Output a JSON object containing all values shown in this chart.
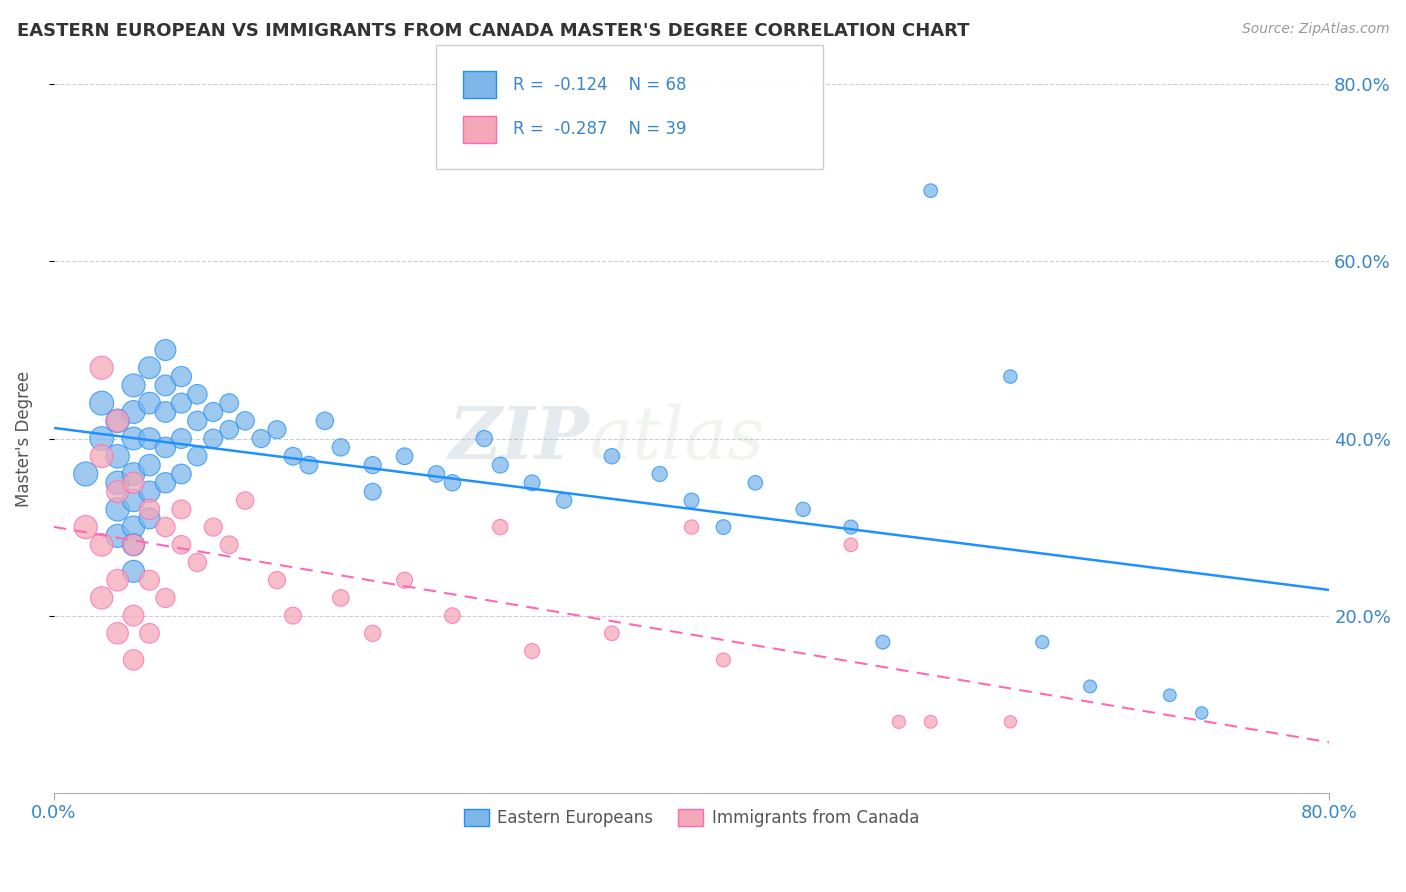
{
  "title": "EASTERN EUROPEAN VS IMMIGRANTS FROM CANADA MASTER'S DEGREE CORRELATION CHART",
  "source_text": "Source: ZipAtlas.com",
  "ylabel": "Master's Degree",
  "xlim": [
    0.0,
    0.8
  ],
  "ylim": [
    0.0,
    0.8
  ],
  "legend_label1": "Eastern Europeans",
  "legend_label2": "Immigrants from Canada",
  "R1": -0.124,
  "N1": 68,
  "R2": -0.287,
  "N2": 39,
  "color_blue": "#7EB6E8",
  "color_pink": "#F4A8B8",
  "line_color_blue": "#1E90FF",
  "line_color_pink": "#FF69B4",
  "watermark_zip": "ZIP",
  "watermark_atlas": "atlas",
  "blue_points": [
    [
      0.02,
      0.36
    ],
    [
      0.03,
      0.44
    ],
    [
      0.03,
      0.4
    ],
    [
      0.04,
      0.42
    ],
    [
      0.04,
      0.38
    ],
    [
      0.04,
      0.35
    ],
    [
      0.04,
      0.32
    ],
    [
      0.04,
      0.29
    ],
    [
      0.05,
      0.46
    ],
    [
      0.05,
      0.43
    ],
    [
      0.05,
      0.4
    ],
    [
      0.05,
      0.36
    ],
    [
      0.05,
      0.33
    ],
    [
      0.05,
      0.3
    ],
    [
      0.05,
      0.28
    ],
    [
      0.05,
      0.25
    ],
    [
      0.06,
      0.48
    ],
    [
      0.06,
      0.44
    ],
    [
      0.06,
      0.4
    ],
    [
      0.06,
      0.37
    ],
    [
      0.06,
      0.34
    ],
    [
      0.06,
      0.31
    ],
    [
      0.07,
      0.5
    ],
    [
      0.07,
      0.46
    ],
    [
      0.07,
      0.43
    ],
    [
      0.07,
      0.39
    ],
    [
      0.07,
      0.35
    ],
    [
      0.08,
      0.47
    ],
    [
      0.08,
      0.44
    ],
    [
      0.08,
      0.4
    ],
    [
      0.08,
      0.36
    ],
    [
      0.09,
      0.45
    ],
    [
      0.09,
      0.42
    ],
    [
      0.09,
      0.38
    ],
    [
      0.1,
      0.43
    ],
    [
      0.1,
      0.4
    ],
    [
      0.11,
      0.44
    ],
    [
      0.11,
      0.41
    ],
    [
      0.12,
      0.42
    ],
    [
      0.13,
      0.4
    ],
    [
      0.14,
      0.41
    ],
    [
      0.15,
      0.38
    ],
    [
      0.16,
      0.37
    ],
    [
      0.17,
      0.42
    ],
    [
      0.18,
      0.39
    ],
    [
      0.2,
      0.37
    ],
    [
      0.2,
      0.34
    ],
    [
      0.22,
      0.38
    ],
    [
      0.24,
      0.36
    ],
    [
      0.25,
      0.35
    ],
    [
      0.27,
      0.4
    ],
    [
      0.28,
      0.37
    ],
    [
      0.3,
      0.35
    ],
    [
      0.32,
      0.33
    ],
    [
      0.35,
      0.38
    ],
    [
      0.38,
      0.36
    ],
    [
      0.4,
      0.33
    ],
    [
      0.42,
      0.3
    ],
    [
      0.44,
      0.35
    ],
    [
      0.47,
      0.32
    ],
    [
      0.5,
      0.3
    ],
    [
      0.52,
      0.17
    ],
    [
      0.55,
      0.68
    ],
    [
      0.6,
      0.47
    ],
    [
      0.62,
      0.17
    ],
    [
      0.65,
      0.12
    ],
    [
      0.7,
      0.11
    ],
    [
      0.72,
      0.09
    ]
  ],
  "pink_points": [
    [
      0.02,
      0.3
    ],
    [
      0.03,
      0.48
    ],
    [
      0.03,
      0.38
    ],
    [
      0.03,
      0.28
    ],
    [
      0.03,
      0.22
    ],
    [
      0.04,
      0.42
    ],
    [
      0.04,
      0.34
    ],
    [
      0.04,
      0.24
    ],
    [
      0.04,
      0.18
    ],
    [
      0.05,
      0.35
    ],
    [
      0.05,
      0.28
    ],
    [
      0.05,
      0.2
    ],
    [
      0.05,
      0.15
    ],
    [
      0.06,
      0.32
    ],
    [
      0.06,
      0.24
    ],
    [
      0.06,
      0.18
    ],
    [
      0.07,
      0.3
    ],
    [
      0.07,
      0.22
    ],
    [
      0.08,
      0.32
    ],
    [
      0.08,
      0.28
    ],
    [
      0.09,
      0.26
    ],
    [
      0.1,
      0.3
    ],
    [
      0.11,
      0.28
    ],
    [
      0.12,
      0.33
    ],
    [
      0.14,
      0.24
    ],
    [
      0.15,
      0.2
    ],
    [
      0.18,
      0.22
    ],
    [
      0.2,
      0.18
    ],
    [
      0.22,
      0.24
    ],
    [
      0.25,
      0.2
    ],
    [
      0.28,
      0.3
    ],
    [
      0.3,
      0.16
    ],
    [
      0.35,
      0.18
    ],
    [
      0.4,
      0.3
    ],
    [
      0.42,
      0.15
    ],
    [
      0.5,
      0.28
    ],
    [
      0.53,
      0.08
    ],
    [
      0.55,
      0.08
    ],
    [
      0.6,
      0.08
    ]
  ]
}
